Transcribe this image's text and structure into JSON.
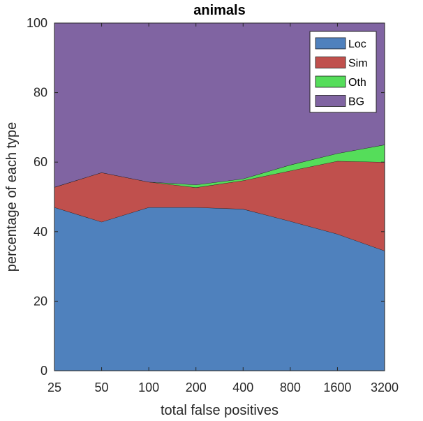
{
  "chart_data": {
    "type": "area",
    "title": "animals",
    "xlabel": "total false positives",
    "ylabel": "percentage of each type",
    "categories": [
      "25",
      "50",
      "100",
      "200",
      "400",
      "800",
      "1600",
      "3200"
    ],
    "ylim": [
      0,
      100
    ],
    "yticks": [
      "0",
      "20",
      "40",
      "60",
      "80",
      "100"
    ],
    "stacked": true,
    "legend_position": "top-right",
    "grid": false,
    "series": [
      {
        "name": "Loc",
        "color": "#4f81bd",
        "values": [
          47.0,
          42.8,
          47.0,
          47.0,
          46.5,
          43.0,
          39.3,
          34.5
        ]
      },
      {
        "name": "Sim",
        "color": "#c0504d",
        "values": [
          5.8,
          14.2,
          7.3,
          5.7,
          8.2,
          14.5,
          21.0,
          25.5
        ]
      },
      {
        "name": "Oth",
        "color": "#55dd5a",
        "values": [
          0,
          0,
          0,
          0.8,
          0.5,
          1.7,
          2.2,
          5.0
        ]
      },
      {
        "name": "BG",
        "color": "#8064a2",
        "values": [
          47.2,
          43.0,
          45.7,
          46.5,
          44.8,
          40.8,
          37.5,
          35.0
        ]
      }
    ]
  }
}
